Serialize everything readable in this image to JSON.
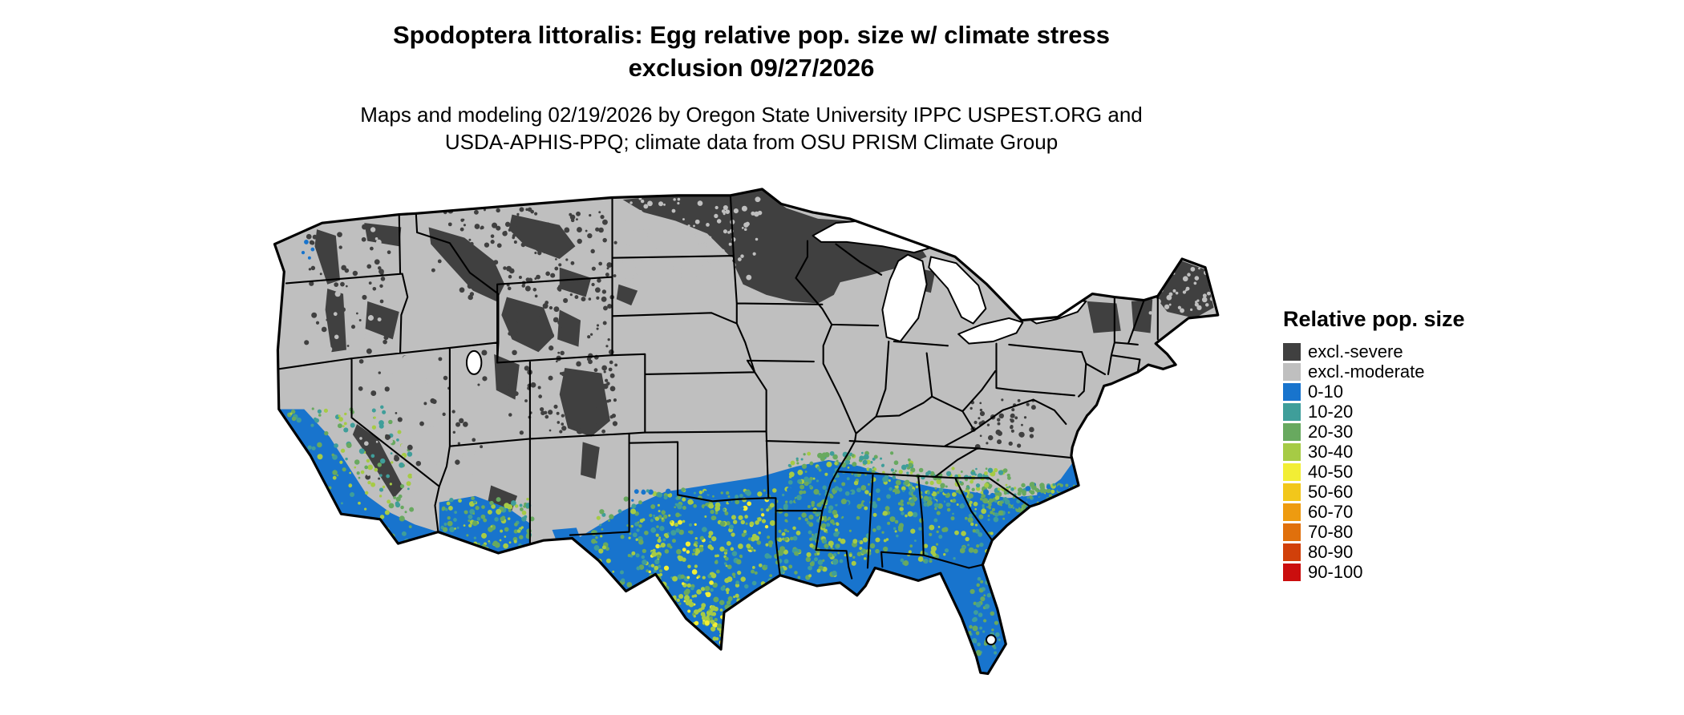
{
  "title": {
    "line1": "Spodoptera littoralis: Egg relative pop. size w/ climate stress",
    "line2": "exclusion 09/27/2026"
  },
  "subtitle": {
    "line1": "Maps and modeling 02/19/2026 by Oregon State University IPPC USPEST.ORG and",
    "line2": "USDA-APHIS-PPQ; climate data from OSU PRISM Climate Group"
  },
  "legend": {
    "title": "Relative pop. size",
    "items": [
      {
        "label": "excl.-severe",
        "color": "#404040"
      },
      {
        "label": "excl.-moderate",
        "color": "#BFBFBF"
      },
      {
        "label": "0-10",
        "color": "#1874CD"
      },
      {
        "label": "10-20",
        "color": "#3F9E9A"
      },
      {
        "label": "20-30",
        "color": "#68A95F"
      },
      {
        "label": "30-40",
        "color": "#A6CB45"
      },
      {
        "label": "40-50",
        "color": "#F2EE35"
      },
      {
        "label": "50-60",
        "color": "#F2C71B"
      },
      {
        "label": "60-70",
        "color": "#EE9B10"
      },
      {
        "label": "70-80",
        "color": "#E0700C"
      },
      {
        "label": "80-90",
        "color": "#D1400A"
      },
      {
        "label": "90-100",
        "color": "#CB0E0E"
      }
    ]
  },
  "map": {
    "area": "Contiguous United States"
  }
}
